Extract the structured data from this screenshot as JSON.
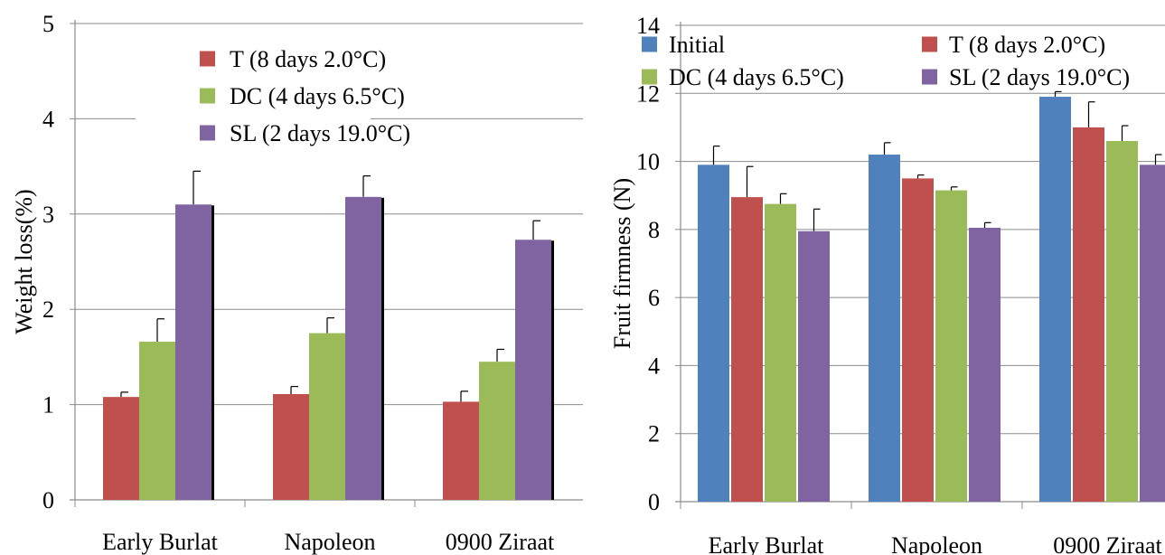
{
  "chart_data": [
    {
      "type": "bar",
      "title": "",
      "xlabel": "",
      "ylabel": "Weight loss(%)",
      "ylim": [
        0,
        5
      ],
      "yticks": [
        "0",
        "1",
        "2",
        "3",
        "4",
        "5"
      ],
      "categories": [
        "Early Burlat",
        "Napoleon",
        "0900 Ziraat"
      ],
      "grid": true,
      "legend_position": "top-center",
      "series": [
        {
          "name": "T (8 days 2.0°C)",
          "color": "#c0504d",
          "values": [
            1.08,
            1.11,
            1.03
          ],
          "errors": [
            0.05,
            0.08,
            0.11
          ]
        },
        {
          "name": "DC (4 days 6.5°C)",
          "color": "#9bbb59",
          "values": [
            1.66,
            1.75,
            1.45
          ],
          "errors": [
            0.24,
            0.16,
            0.13
          ]
        },
        {
          "name": "SL (2 days 19.0°C)",
          "color": "#8064a2",
          "values": [
            3.1,
            3.18,
            2.73
          ],
          "errors": [
            0.35,
            0.22,
            0.2
          ]
        }
      ]
    },
    {
      "type": "bar",
      "title": "",
      "xlabel": "",
      "ylabel": "Fruit firmness (N)",
      "ylim": [
        0,
        14
      ],
      "yticks": [
        "0",
        "2",
        "4",
        "6",
        "8",
        "10",
        "12",
        "14"
      ],
      "categories": [
        "Early Burlat",
        "Napoleon",
        "0900 Ziraat"
      ],
      "grid": true,
      "legend_position": "top",
      "series": [
        {
          "name": "Initial",
          "color": "#4f81bd",
          "values": [
            9.9,
            10.2,
            11.9
          ],
          "errors": [
            0.55,
            0.35,
            0.15
          ]
        },
        {
          "name": "T (8 days 2.0°C)",
          "color": "#c0504d",
          "values": [
            8.95,
            9.5,
            11.0
          ],
          "errors": [
            0.9,
            0.1,
            0.75
          ]
        },
        {
          "name": "DC (4 days 6.5°C)",
          "color": "#9bbb59",
          "values": [
            8.75,
            9.15,
            10.6
          ],
          "errors": [
            0.3,
            0.1,
            0.45
          ]
        },
        {
          "name": "SL (2 days 19.0°C)",
          "color": "#8064a2",
          "values": [
            7.95,
            8.05,
            9.9
          ],
          "errors": [
            0.65,
            0.15,
            0.3
          ]
        }
      ]
    }
  ]
}
